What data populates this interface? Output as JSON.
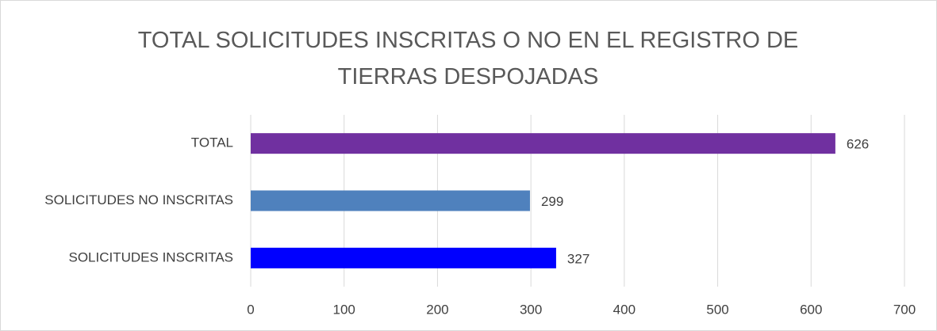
{
  "chart_data": {
    "type": "bar",
    "orientation": "horizontal",
    "title": "TOTAL SOLICITUDES INSCRITAS O NO EN EL REGISTRO DE TIERRAS DESPOJADAS",
    "categories": [
      "SOLICITUDES INSCRITAS",
      "SOLICITUDES NO INSCRITAS",
      "TOTAL"
    ],
    "values": [
      327,
      299,
      626
    ],
    "colors": [
      "#0000ff",
      "#4f81bd",
      "#7030a0"
    ],
    "xlim": [
      0,
      700
    ],
    "xticks": [
      0,
      100,
      200,
      300,
      400,
      500,
      600,
      700
    ],
    "grid": true,
    "data_labels": true
  }
}
